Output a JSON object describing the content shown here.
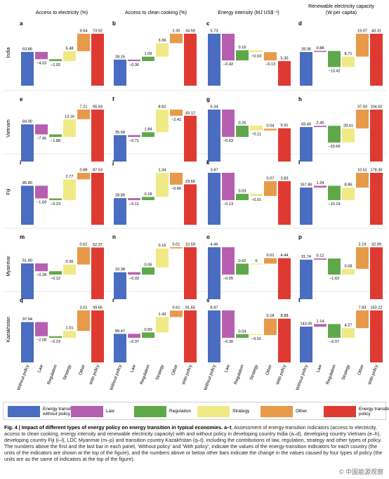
{
  "colors": {
    "without_policy": "#4a6cc1",
    "law": "#b65fb0",
    "regulation": "#5fa84a",
    "strategy": "#f0ea86",
    "other": "#e79a4a",
    "with_policy": "#de3a32"
  },
  "legend": [
    {
      "label": "Energy transition without policy",
      "color": "#4a6cc1"
    },
    {
      "label": "Law",
      "color": "#b65fb0"
    },
    {
      "label": "Regulation",
      "color": "#5fa84a"
    },
    {
      "label": "Strategy",
      "color": "#f0ea86"
    },
    {
      "label": "Other",
      "color": "#e79a4a"
    },
    {
      "label": "Energy transition with policy",
      "color": "#de3a32"
    }
  ],
  "caption": {
    "title": "Fig. 4 | Impact of different types of energy policy on energy transition in typical economies. a–t",
    "body": ", Assessment of energy-transition indicators (access to electricity, access to clean cooking, energy intensity and renewable electricity capacity) with and without policy in developing country India (a–d), developing country Vietnam (e–h), developing country Fiji (i–l), LDC Myanmar (m–p) and transition country Kazakhstan (q–t), including the contributions of law, regulation, strategy and other types of policy. The numbers above the first and the last bar in each panel, ‘Without policy’ and ‘With policy’, indicate the values of the energy-transition indicators for each country (the units of the indicators are shown at the top of the figure), and the numbers above or below other bars indicate the change in the values caused by four types of policy (the units are as the same of indicators at the top of the figure)."
  },
  "watermark": "© 中国能源观察",
  "chart_data": {
    "type": "bar",
    "chart_style": "waterfall",
    "columns": [
      "Access to electricity (%)",
      "Access to clean cooking (%)",
      "Energy intensity (MJ US$⁻¹)",
      "Renewable electricity capacity (W per capita)"
    ],
    "countries": [
      "India",
      "Vietnam",
      "Fiji",
      "Myanmar",
      "Kazakhstan"
    ],
    "categories": [
      "Without policy",
      "Law",
      "Regulation",
      "Strategy",
      "Other",
      "With policy"
    ],
    "panels": [
      {
        "letter": "a",
        "country": "India",
        "column": 0,
        "values": [
          63.86,
          -4.03,
          -1.02,
          5.48,
          9.64,
          73.92
        ]
      },
      {
        "letter": "b",
        "country": "India",
        "column": 1,
        "values": [
          28.15,
          -0.36,
          1.09,
          3.36,
          2.35,
          34.59
        ]
      },
      {
        "letter": "c",
        "country": "India",
        "column": 2,
        "values": [
          5.73,
          -0.42,
          0.16,
          -0.03,
          -0.13,
          5.3
        ]
      },
      {
        "letter": "d",
        "country": "India",
        "column": 3,
        "values": [
          28.06,
          0.88,
          -13.42,
          8.71,
          19.07,
          43.31
        ]
      },
      {
        "letter": "e",
        "country": "Vietnam",
        "column": 0,
        "values": [
          84.9,
          -7.46,
          -1.88,
          13.16,
          7.21,
          95.93
        ]
      },
      {
        "letter": "f",
        "country": "Vietnam",
        "column": 1,
        "values": [
          35.58,
          -0.71,
          1.84,
          8.82,
          -2.41,
          43.12
        ]
      },
      {
        "letter": "g",
        "country": "Vietnam",
        "column": 2,
        "values": [
          6.34,
          -0.63,
          0.26,
          -0.11,
          0.04,
          5.91
        ]
      },
      {
        "letter": "h",
        "country": "Vietnam",
        "column": 3,
        "values": [
          69.49,
          2.45,
          -33.65,
          28.41,
          37.93,
          104.62
        ]
      },
      {
        "letter": "i",
        "country": "Fiji",
        "column": 0,
        "values": [
          85.8,
          -1.69,
          -0.23,
          2.77,
          0.88,
          87.53
        ]
      },
      {
        "letter": "j",
        "country": "Fiji",
        "column": 1,
        "values": [
          28.89,
          -0.11,
          0.18,
          1.34,
          -0.66,
          29.66
        ]
      },
      {
        "letter": "k",
        "country": "Fiji",
        "column": 2,
        "values": [
          3.87,
          -0.13,
          0.03,
          -0.01,
          0.07,
          3.83
        ]
      },
      {
        "letter": "l",
        "country": "Fiji",
        "column": 3,
        "values": [
          167.86,
          1.24,
          -10.19,
          8.86,
          10.51,
          178.3
        ]
      },
      {
        "letter": "m",
        "country": "Myanmar",
        "column": 0,
        "values": [
          51.8,
          -0.28,
          -0.12,
          0.36,
          0.62,
          52.37
        ]
      },
      {
        "letter": "n",
        "country": "Myanmar",
        "column": 1,
        "values": [
          10.38,
          -0.02,
          0.06,
          0.16,
          0.01,
          10.59
        ]
      },
      {
        "letter": "o",
        "country": "Myanmar",
        "column": 2,
        "values": [
          4.46,
          -0.05,
          0.02,
          0,
          0.01,
          4.44
        ]
      },
      {
        "letter": "p",
        "country": "Myanmar",
        "column": 3,
        "values": [
          31.74,
          0.12,
          -1.63,
          0.58,
          2.19,
          32.99
        ]
      },
      {
        "letter": "q",
        "country": "Kazakhstan",
        "column": 0,
        "values": [
          97.94,
          -2.08,
          -0.23,
          1.01,
          3.01,
          99.65
        ]
      },
      {
        "letter": "r",
        "country": "Kazakhstan",
        "column": 1,
        "values": [
          89.47,
          -0.37,
          0.5,
          1.43,
          0.61,
          91.65
        ]
      },
      {
        "letter": "s",
        "country": "Kazakhstan",
        "column": 2,
        "values": [
          8.97,
          -0.3,
          0.04,
          -0.01,
          0.18,
          8.88
        ]
      },
      {
        "letter": "t",
        "country": "Kazakhstan",
        "column": 3,
        "values": [
          143.05,
          1.14,
          -6.07,
          4.27,
          7.83,
          150.22
        ]
      }
    ],
    "label_texts": {
      "a": [
        "63.86",
        "−4.03",
        "−1.02",
        "5.48",
        "9.64",
        "73.92"
      ],
      "b": [
        "28.15",
        "−0.36",
        "1.09",
        "3.36",
        "2.35",
        "34.59"
      ],
      "c": [
        "5.73",
        "−0.42",
        "0.16",
        "−0.03",
        "−0.13",
        "5.30"
      ],
      "d": [
        "28.06",
        "0.88",
        "−13.42",
        "8.71",
        "19.07",
        "43.31"
      ],
      "e": [
        "84.90",
        "−7.46",
        "−1.88",
        "13.16",
        "7.21",
        "95.93"
      ],
      "f": [
        "35.58",
        "−0.71",
        "1.84",
        "8.82",
        "−2.41",
        "43.12"
      ],
      "g": [
        "6.34",
        "−0.63",
        "0.26",
        "−0.11",
        "0.04",
        "5.91"
      ],
      "h": [
        "69.49",
        "2.45",
        "−33.65",
        "28.41",
        "37.93",
        "104.62"
      ],
      "i": [
        "85.80",
        "−1.69",
        "−0.23",
        "2.77",
        "0.88",
        "87.53"
      ],
      "j": [
        "28.89",
        "−0.11",
        "0.18",
        "1.34",
        "−0.66",
        "29.66"
      ],
      "k": [
        "3.87",
        "−0.13",
        "0.03",
        "−0.01",
        "0.07",
        "3.83"
      ],
      "l": [
        "167.86",
        "1.24",
        "−10.19",
        "8.86",
        "10.51",
        "178.30"
      ],
      "m": [
        "51.80",
        "−0.28",
        "−0.12",
        "0.36",
        "0.62",
        "52.37"
      ],
      "n": [
        "10.38",
        "−0.02",
        "0.06",
        "0.16",
        "0.01",
        "10.59"
      ],
      "o": [
        "4.46",
        "−0.05",
        "0.02",
        "0",
        "0.01",
        "4.44"
      ],
      "p": [
        "31.74",
        "0.12",
        "−1.63",
        "0.58",
        "2.19",
        "32.99"
      ],
      "q": [
        "97.94",
        "−2.08",
        "−0.23",
        "1.01",
        "3.01",
        "99.65"
      ],
      "r": [
        "89.47",
        "−0.37",
        "0.50",
        "1.43",
        "0.61",
        "91.65"
      ],
      "s": [
        "8.97",
        "−0.30",
        "0.04",
        "−0.01",
        "0.18",
        "8.88"
      ],
      "t": [
        "143.05",
        "1.14",
        "−6.07",
        "4.27",
        "7.83",
        "150.22"
      ]
    }
  }
}
